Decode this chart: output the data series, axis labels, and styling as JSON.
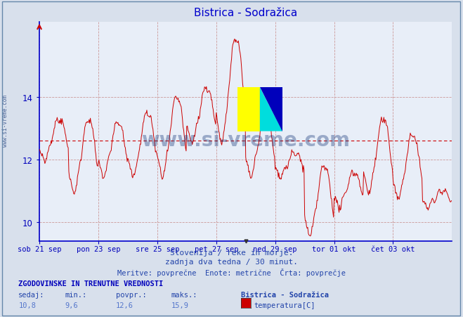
{
  "title": "Bistrica - Sodražica",
  "bg_color": "#d8e0ec",
  "plot_bg_color": "#e8eef8",
  "line_color": "#cc0000",
  "avg_value": 12.6,
  "ymin": 9.4,
  "ymax": 16.4,
  "yticks": [
    10,
    12,
    14
  ],
  "xlabel_color": "#0000bb",
  "ylabel_color": "#0000bb",
  "title_color": "#0000cc",
  "grid_color_h": "#cc9999",
  "grid_color_v": "#cc9999",
  "watermark": "www.si-vreme.com",
  "watermark_color": "#1a3a7a",
  "watermark_alpha": 0.38,
  "subtitle1": "Slovenija / reke in morje.",
  "subtitle2": "zadnja dva tedna / 30 minut.",
  "subtitle3": "Meritve: povprečne  Enote: metrične  Črta: povprečje",
  "footer_title": "ZGODOVINSKE IN TRENUTNE VREDNOSTI",
  "footer_sedaj_label": "sedaj:",
  "footer_min_label": "min.:",
  "footer_povpr_label": "povpr.:",
  "footer_maks_label": "maks.:",
  "footer_sedaj_val": "10,8",
  "footer_min_val": "9,6",
  "footer_povpr_val": "12,6",
  "footer_maks_val": "15,9",
  "footer_station": "Bistrica - Sodražica",
  "footer_param": "temperatura[C]",
  "footer_color_box": "#cc0000",
  "x_tick_labels": [
    "sob 21 sep",
    "pon 23 sep",
    "sre 25 sep",
    "pet 27 sep",
    "ned 29 sep",
    "tor 01 okt",
    "čet 03 okt"
  ],
  "sidebar_text": "www.si-vreme.com",
  "sidebar_color": "#1a3a7a"
}
